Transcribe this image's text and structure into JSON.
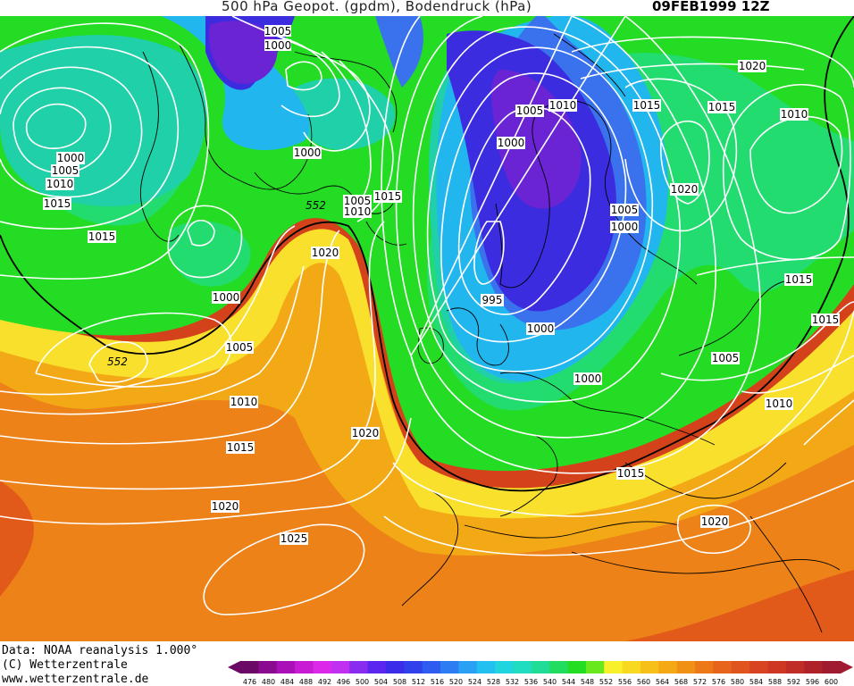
{
  "title": {
    "main": "500 hPa Geopot. (gpdm), Bodendruck (hPa)",
    "date": "09FEB1999 12Z"
  },
  "footer": {
    "line1": "Data: NOAA reanalysis 1.000°",
    "line2": "(C) Wetterzentrale",
    "line3": "www.wetterzentrale.de"
  },
  "colors": {
    "deep_red": "#cc3a1e",
    "red_orange": "#e0541c",
    "orange": "#f08c18",
    "light_orange": "#f5b414",
    "yellow": "#f8e82a",
    "green": "#22dd22",
    "cyan_green": "#20dca0",
    "cyan": "#22b8f0",
    "blue": "#3a6cf0",
    "deep_blue": "#3b1ee0",
    "purple": "#6a1ad0",
    "violet": "#8a2cd8"
  },
  "scale": {
    "values": [
      "476",
      "480",
      "484",
      "488",
      "492",
      "496",
      "500",
      "504",
      "508",
      "512",
      "516",
      "520",
      "524",
      "528",
      "532",
      "536",
      "540",
      "544",
      "548",
      "552",
      "556",
      "560",
      "564",
      "568",
      "572",
      "576",
      "580",
      "584",
      "588",
      "592",
      "596",
      "600"
    ],
    "colors": [
      "#6a0a66",
      "#8a0a90",
      "#aa10b8",
      "#c81cd4",
      "#dc28e8",
      "#c030f0",
      "#8a2cf0",
      "#5a26f0",
      "#3a2ce8",
      "#3040ea",
      "#2e5cf0",
      "#2c7cf4",
      "#28a0f4",
      "#22c0f0",
      "#20d4e0",
      "#20dcc0",
      "#20dc96",
      "#22dc60",
      "#22dd22",
      "#6ae81e",
      "#f8f02a",
      "#f8d820",
      "#f6c018",
      "#f4a814",
      "#f09014",
      "#ec7818",
      "#e6641c",
      "#e0541e",
      "#d84420",
      "#cc3822",
      "#c02c26",
      "#b0222a",
      "#a01a30"
    ]
  },
  "map_labels": {
    "isobars": [
      "1005",
      "1000",
      "1000",
      "1005",
      "1010",
      "1015",
      "1015",
      "1000",
      "1000",
      "1005",
      "1010",
      "1015",
      "1020",
      "1005",
      "1010",
      "1000",
      "995",
      "1000",
      "1005",
      "1000",
      "1000",
      "1015",
      "1015",
      "1020",
      "1025",
      "1020",
      "1005",
      "1010",
      "1010",
      "1015",
      "1015",
      "1020",
      "1015",
      "1010",
      "1020",
      "1005",
      "1020",
      "1015"
    ],
    "contours": [
      "552",
      "552"
    ]
  }
}
